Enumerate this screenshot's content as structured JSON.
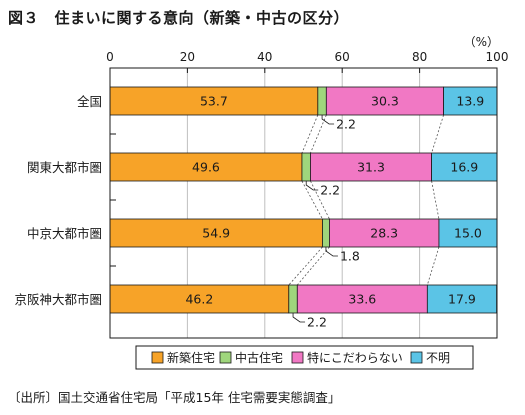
{
  "title": "図３　住まいに関する意向（新築・中古の区分）",
  "source": "〔出所〕国土交通省住宅局「平成15年 住宅需要実態調査」",
  "colors": {
    "new": "#f7a328",
    "used": "#9fd67c",
    "no_preference": "#f178c4",
    "unknown": "#5bc4e6",
    "grid": "#bfbfbf",
    "border": "#1a1a1a"
  },
  "chart_data": {
    "type": "bar",
    "orientation": "horizontal",
    "stacked": true,
    "percent_stacked": true,
    "unit_label": "（%）",
    "xlim": [
      0,
      100
    ],
    "x_ticks": [
      0,
      20,
      40,
      60,
      80,
      100
    ],
    "grid": true,
    "legend_position": "bottom",
    "categories": [
      "全国",
      "関東大都市圏",
      "中京大都市圏",
      "京阪神大都市圏"
    ],
    "series": [
      {
        "name": "新築住宅",
        "values": [
          53.7,
          49.6,
          54.9,
          46.2
        ],
        "color": "#f7a328"
      },
      {
        "name": "中古住宅",
        "values": [
          2.2,
          2.2,
          1.8,
          2.2
        ],
        "color": "#9fd67c"
      },
      {
        "name": "特にこだわらない",
        "values": [
          30.3,
          31.3,
          28.3,
          33.6
        ],
        "color": "#f178c4"
      },
      {
        "name": "不明",
        "values": [
          13.9,
          16.9,
          15.0,
          17.9
        ],
        "color": "#5bc4e6"
      }
    ],
    "value_labels": [
      [
        "53.7",
        "2.2",
        "30.3",
        "13.9"
      ],
      [
        "49.6",
        "2.2",
        "31.3",
        "16.9"
      ],
      [
        "54.9",
        "1.8",
        "28.3",
        "15.0"
      ],
      [
        "46.2",
        "2.2",
        "33.6",
        "17.9"
      ]
    ]
  }
}
